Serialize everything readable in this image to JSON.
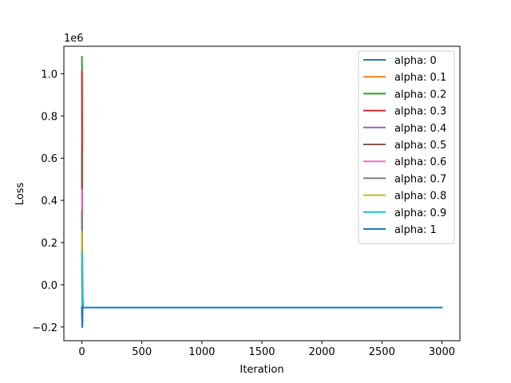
{
  "chart_data": {
    "type": "line",
    "title": "",
    "xlabel": "Iteration",
    "ylabel": "Loss",
    "y_offset_label": "1e6",
    "xlim": [
      -150,
      3150
    ],
    "ylim": [
      -0.265,
      1.13
    ],
    "x_ticks": [
      0,
      500,
      1000,
      1500,
      2000,
      2500,
      3000
    ],
    "x_tick_labels": [
      "0",
      "500",
      "1000",
      "1500",
      "2000",
      "2500",
      "3000"
    ],
    "y_ticks": [
      -0.2,
      0.0,
      0.2,
      0.4,
      0.6,
      0.8,
      1.0
    ],
    "y_tick_labels": [
      "−0.2",
      "0.0",
      "0.2",
      "0.4",
      "0.6",
      "0.8",
      "1.0"
    ],
    "grid": false,
    "legend_position": "top-right",
    "series": [
      {
        "name": "alpha: 0",
        "color": "#1f77b4",
        "x": [
          0,
          3,
          6,
          10,
          3000
        ],
        "y": [
          -0.105,
          -0.2,
          -0.105,
          -0.108,
          -0.108
        ]
      },
      {
        "name": "alpha: 0.1",
        "color": "#ff7f0e",
        "x": [
          0,
          2,
          5,
          10,
          3000
        ],
        "y": [
          0.65,
          0.2,
          -0.1,
          -0.108,
          -0.108
        ]
      },
      {
        "name": "alpha: 0.2",
        "color": "#2ca02c",
        "x": [
          0,
          1,
          2,
          4,
          10,
          3000
        ],
        "y": [
          1.08,
          1.01,
          0.6,
          -0.1,
          -0.108,
          -0.108
        ]
      },
      {
        "name": "alpha: 0.3",
        "color": "#d62728",
        "x": [
          0,
          1,
          3,
          6,
          10,
          3000
        ],
        "y": [
          1.01,
          0.75,
          0.2,
          -0.1,
          -0.108,
          -0.108
        ]
      },
      {
        "name": "alpha: 0.4",
        "color": "#9467bd",
        "x": [
          0,
          3,
          10,
          3000
        ],
        "y": [
          0.55,
          0.0,
          -0.108,
          -0.108
        ]
      },
      {
        "name": "alpha: 0.5",
        "color": "#8c564b",
        "x": [
          0,
          3,
          10,
          3000
        ],
        "y": [
          0.63,
          -0.1,
          -0.108,
          -0.108
        ]
      },
      {
        "name": "alpha: 0.6",
        "color": "#e377c2",
        "x": [
          0,
          3,
          10,
          3000
        ],
        "y": [
          0.45,
          -0.1,
          -0.108,
          -0.108
        ]
      },
      {
        "name": "alpha: 0.7",
        "color": "#7f7f7f",
        "x": [
          0,
          3,
          10,
          3000
        ],
        "y": [
          0.35,
          -0.1,
          -0.108,
          -0.108
        ]
      },
      {
        "name": "alpha: 0.8",
        "color": "#bcbd22",
        "x": [
          0,
          3,
          10,
          3000
        ],
        "y": [
          0.25,
          -0.1,
          -0.108,
          -0.108
        ]
      },
      {
        "name": "alpha: 0.9",
        "color": "#17becf",
        "x": [
          0,
          3,
          10,
          3000
        ],
        "y": [
          0.15,
          -0.1,
          -0.108,
          -0.108
        ]
      },
      {
        "name": "alpha: 1",
        "color": "#1f77b4",
        "x": [
          0,
          3,
          6,
          10,
          3000
        ],
        "y": [
          -0.105,
          -0.2,
          -0.105,
          -0.108,
          -0.108
        ]
      }
    ]
  }
}
